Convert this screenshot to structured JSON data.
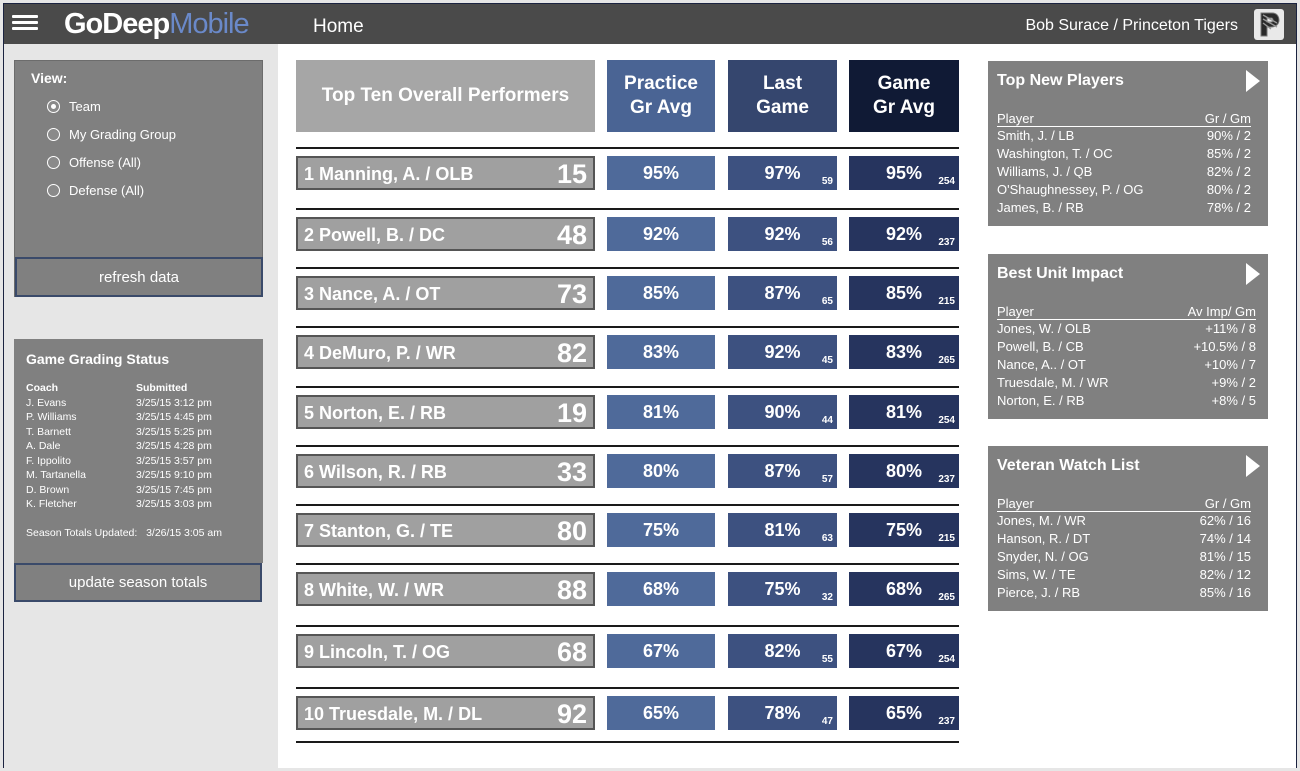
{
  "header": {
    "logo_part1": "GoDeep",
    "logo_part2": "Mobile",
    "title": "Home",
    "user_team": "Bob Surace / Princeton Tigers",
    "colors": {
      "bar": "#4a4a4a",
      "logo_accent": "#6a89c9"
    }
  },
  "view": {
    "title": "View:",
    "options": [
      {
        "label": "Team",
        "selected": true
      },
      {
        "label": "My Grading Group",
        "selected": false
      },
      {
        "label": "Offense (All)",
        "selected": false
      },
      {
        "label": "Defense (All)",
        "selected": false
      }
    ],
    "refresh_label": "refresh data"
  },
  "grading_status": {
    "title": "Game Grading Status",
    "col_coach": "Coach",
    "col_submitted": "Submitted",
    "rows": [
      {
        "coach": "J. Evans",
        "submitted": "3/25/15 3:12 pm"
      },
      {
        "coach": "P. Williams",
        "submitted": "3/25/15 4:45 pm"
      },
      {
        "coach": "T. Barnett",
        "submitted": "3/25/15 5:25 pm"
      },
      {
        "coach": "A. Dale",
        "submitted": "3/25/15 4:28 pm"
      },
      {
        "coach": "F. Ippolito",
        "submitted": "3/25/15 3:57 pm"
      },
      {
        "coach": "M. Tartanella",
        "submitted": "3/25/15 9:10 pm"
      },
      {
        "coach": "D. Brown",
        "submitted": "3/25/15 7:45 pm"
      },
      {
        "coach": "K. Fletcher",
        "submitted": "3/25/15 3:03 pm"
      }
    ],
    "season_updated_label": "Season Totals Updated:",
    "season_updated_value": "3/26/15 3:05 am",
    "update_label": "update season totals"
  },
  "performers": {
    "title": "Top Ten Overall Performers",
    "col_practice": [
      "Practice",
      "Gr Avg"
    ],
    "col_last": [
      "Last",
      "Game"
    ],
    "col_game": [
      "Game",
      "Gr Avg"
    ],
    "colors": {
      "practice": "#4a6494",
      "last": "#35466e",
      "game": "#101a35",
      "practice_cell": "#4f6a9a",
      "last_cell": "#3d5180",
      "game_cell": "#26345e"
    },
    "rows": [
      {
        "name": "1   Manning, A. / OLB",
        "jersey": "15",
        "practice": "95%",
        "last": "97%",
        "last_sub": "59",
        "game": "95%",
        "game_sub": "254"
      },
      {
        "name": "2   Powell, B. / DC",
        "jersey": "48",
        "practice": "92%",
        "last": "92%",
        "last_sub": "56",
        "game": "92%",
        "game_sub": "237"
      },
      {
        "name": "3   Nance, A. / OT",
        "jersey": "73",
        "practice": "85%",
        "last": "87%",
        "last_sub": "65",
        "game": "85%",
        "game_sub": "215"
      },
      {
        "name": "4   DeMuro, P. / WR",
        "jersey": "82",
        "practice": "83%",
        "last": "92%",
        "last_sub": "45",
        "game": "83%",
        "game_sub": "265"
      },
      {
        "name": "5   Norton, E. / RB",
        "jersey": "19",
        "practice": "81%",
        "last": "90%",
        "last_sub": "44",
        "game": "81%",
        "game_sub": "254"
      },
      {
        "name": "6   Wilson, R. / RB",
        "jersey": "33",
        "practice": "80%",
        "last": "87%",
        "last_sub": "57",
        "game": "80%",
        "game_sub": "237"
      },
      {
        "name": "7   Stanton, G. / TE",
        "jersey": "80",
        "practice": "75%",
        "last": "81%",
        "last_sub": "63",
        "game": "75%",
        "game_sub": "215"
      },
      {
        "name": "8   White, W. / WR",
        "jersey": "88",
        "practice": "68%",
        "last": "75%",
        "last_sub": "32",
        "game": "68%",
        "game_sub": "265"
      },
      {
        "name": "9   Lincoln, T. / OG",
        "jersey": "68",
        "practice": "67%",
        "last": "82%",
        "last_sub": "55",
        "game": "67%",
        "game_sub": "254"
      },
      {
        "name": "10 Truesdale, M. / DL",
        "jersey": "92",
        "practice": "65%",
        "last": "78%",
        "last_sub": "47",
        "game": "65%",
        "game_sub": "237"
      }
    ]
  },
  "new_players": {
    "title": "Top New Players",
    "col1": "Player",
    "col2": "Gr / Gm",
    "rows": [
      {
        "player": "Smith, J. / LB",
        "val": "90% / 2"
      },
      {
        "player": "Washington, T. / OC",
        "val": "85% / 2"
      },
      {
        "player": "Williams, J. / QB",
        "val": "82% / 2"
      },
      {
        "player": "O'Shaughnessey, P. / OG",
        "val": "80% / 2"
      },
      {
        "player": "James, B. / RB",
        "val": "78% / 2"
      }
    ]
  },
  "unit_impact": {
    "title": "Best Unit Impact",
    "col1": "Player",
    "col2": "Av Imp/ Gm",
    "rows": [
      {
        "player": "Jones, W. / OLB",
        "val": "+11% / 8"
      },
      {
        "player": "Powell, B. / CB",
        "val": "+10.5% / 8"
      },
      {
        "player": "Nance, A.. / OT",
        "val": "+10% / 7"
      },
      {
        "player": "Truesdale, M. / WR",
        "val": "+9% / 2"
      },
      {
        "player": "Norton, E. / RB",
        "val": "+8% / 5"
      }
    ]
  },
  "veteran": {
    "title": "Veteran Watch List",
    "col1": "Player",
    "col2": "Gr / Gm",
    "rows": [
      {
        "player": "Jones, M. / WR",
        "val": "62% / 16"
      },
      {
        "player": "Hanson, R. / DT",
        "val": "74% / 14"
      },
      {
        "player": "Snyder, N. / OG",
        "val": "81% / 15"
      },
      {
        "player": "Sims, W. / TE",
        "val": "82% / 12"
      },
      {
        "player": "Pierce, J. / RB",
        "val": "85% / 16"
      }
    ]
  }
}
